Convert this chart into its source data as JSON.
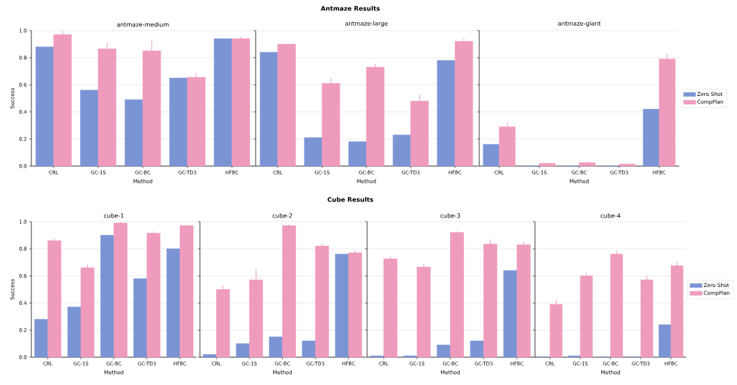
{
  "chart_data": [
    {
      "type": "bar",
      "title": "antmaze-medium",
      "annotations": [
        "Antmaze Results"
      ],
      "xlabel": "Method",
      "ylabel": "Success",
      "categories": [
        "CRL",
        "GC-1S",
        "GC-BC",
        "GC-TD3",
        "HFBC"
      ],
      "ylim": [
        0,
        1
      ],
      "yticks": [
        {
          "value": 0,
          "label": "0.0"
        },
        {
          "value": 0.2,
          "label": "0.2"
        },
        {
          "value": 0.4,
          "label": "0.4"
        },
        {
          "value": 0.6,
          "label": "0.6"
        },
        {
          "value": 0.8,
          "label": "0.8"
        },
        {
          "value": 1,
          "label": "1.0"
        }
      ],
      "grid": "y",
      "series": [
        {
          "color": "#7b94d4",
          "values": [
            0.88,
            0.56,
            0.49,
            0.65,
            0.94
          ]
        },
        {
          "color": "#ef9bbd",
          "values": [
            0.97,
            0.865,
            0.85,
            0.655,
            0.94
          ],
          "errors": [
            0.03,
            0.05,
            0.08,
            0.03,
            0.015
          ]
        }
      ]
    },
    {
      "type": "bar",
      "title": "antmaze-large",
      "xlabel": "Method",
      "categories": [
        "CRL",
        "GC-1S",
        "GC-BC",
        "GC-TD3",
        "HFBC"
      ],
      "ylim": [
        0,
        1
      ],
      "yticks": [
        0,
        0.2,
        0.4,
        0.6,
        0.8,
        1
      ],
      "grid": "y",
      "tick_labels": "x",
      "series": [
        {
          "color": "#7b94d4",
          "values": [
            0.84,
            0.21,
            0.18,
            0.23,
            0.78
          ]
        },
        {
          "color": "#ef9bbd",
          "values": [
            0.9,
            0.61,
            0.73,
            0.48,
            0.92
          ],
          "errors": [
            null,
            0.04,
            0.025,
            0.05,
            0.02
          ]
        }
      ]
    },
    {
      "type": "bar",
      "title": "antmaze-giant",
      "xlabel": "Method",
      "categories": [
        "CRL",
        "GC-1S",
        "GC-BC",
        "GC-TD3",
        "HFBC"
      ],
      "ylim": [
        0,
        1
      ],
      "yticks": [
        0,
        0.2,
        0.4,
        0.6,
        0.8,
        1
      ],
      "grid": "y",
      "tick_labels": "x",
      "legend": "right",
      "series": [
        {
          "name": "Zero Shot",
          "color": "#7b94d4",
          "values": [
            0.16,
            0,
            0,
            0,
            0.42
          ]
        },
        {
          "name": "CompPlan",
          "color": "#ef9bbd",
          "values": [
            0.29,
            0.02,
            0.025,
            0.015,
            0.79
          ],
          "errors": [
            0.03,
            null,
            0.01,
            null,
            0.04
          ]
        }
      ]
    },
    {
      "type": "bar",
      "title": "cube-1",
      "annotations": [
        "Cube Results"
      ],
      "xlabel": "Method",
      "ylabel": "Success",
      "categories": [
        "CRL",
        "GC-1S",
        "GC-BC",
        "GC-TD3",
        "HFBC"
      ],
      "ylim": [
        0,
        1
      ],
      "yticks": [
        {
          "value": 0,
          "label": "0.0"
        },
        {
          "value": 0.2,
          "label": "0.2"
        },
        {
          "value": 0.4,
          "label": "0.4"
        },
        {
          "value": 0.6,
          "label": "0.6"
        },
        {
          "value": 0.8,
          "label": "0.8"
        },
        {
          "value": 1,
          "label": "1.0"
        }
      ],
      "grid": "y",
      "series": [
        {
          "color": "#7b94d4",
          "values": [
            0.28,
            0.37,
            0.9,
            0.58,
            0.8
          ]
        },
        {
          "color": "#ef9bbd",
          "values": [
            0.86,
            0.66,
            0.99,
            0.915,
            0.97
          ],
          "errors": [
            0.02,
            0.025,
            0.01,
            0.015,
            0.01
          ]
        }
      ]
    },
    {
      "type": "bar",
      "title": "cube-2",
      "xlabel": "Method",
      "categories": [
        "CRL",
        "GC-1S",
        "GC-BC",
        "GC-TD3",
        "HFBC"
      ],
      "ylim": [
        0,
        1
      ],
      "yticks": [
        0,
        0.2,
        0.4,
        0.6,
        0.8,
        1
      ],
      "grid": "y",
      "tick_labels": "x",
      "series": [
        {
          "color": "#7b94d4",
          "values": [
            0.02,
            0.1,
            0.15,
            0.12,
            0.76
          ]
        },
        {
          "color": "#ef9bbd",
          "values": [
            0.5,
            0.57,
            0.97,
            0.82,
            0.77
          ],
          "errors": [
            0.03,
            0.08,
            0.01,
            0.015,
            0.02
          ]
        }
      ]
    },
    {
      "type": "bar",
      "title": "cube-3",
      "xlabel": "Method",
      "categories": [
        "CRL",
        "GC-1S",
        "GC-BC",
        "GC-TD3",
        "HFBC"
      ],
      "ylim": [
        0,
        1
      ],
      "yticks": [
        0,
        0.2,
        0.4,
        0.6,
        0.8,
        1
      ],
      "grid": "y",
      "tick_labels": "x",
      "series": [
        {
          "color": "#7b94d4",
          "values": [
            0.01,
            0.01,
            0.09,
            0.12,
            0.64
          ]
        },
        {
          "color": "#ef9bbd",
          "values": [
            0.725,
            0.665,
            0.92,
            0.835,
            0.83
          ],
          "errors": [
            0.02,
            0.025,
            0.01,
            0.035,
            0.025
          ]
        }
      ]
    },
    {
      "type": "bar",
      "title": "cube-4",
      "xlabel": "Method",
      "categories": [
        "CRL",
        "GC-1S",
        "GC-BC",
        "GC-TD3",
        "HFBC"
      ],
      "ylim": [
        0,
        1
      ],
      "yticks": [
        0,
        0.2,
        0.4,
        0.6,
        0.8,
        1
      ],
      "grid": "y",
      "tick_labels": "x",
      "legend": "right",
      "series": [
        {
          "name": "Zero Shot",
          "color": "#7b94d4",
          "values": [
            0,
            0.01,
            0,
            0,
            0.24
          ]
        },
        {
          "name": "CompPlan",
          "color": "#ef9bbd",
          "values": [
            0.39,
            0.6,
            0.76,
            0.57,
            0.675
          ],
          "errors": [
            0.035,
            0.025,
            0.03,
            0.03,
            0.03
          ]
        }
      ]
    }
  ]
}
